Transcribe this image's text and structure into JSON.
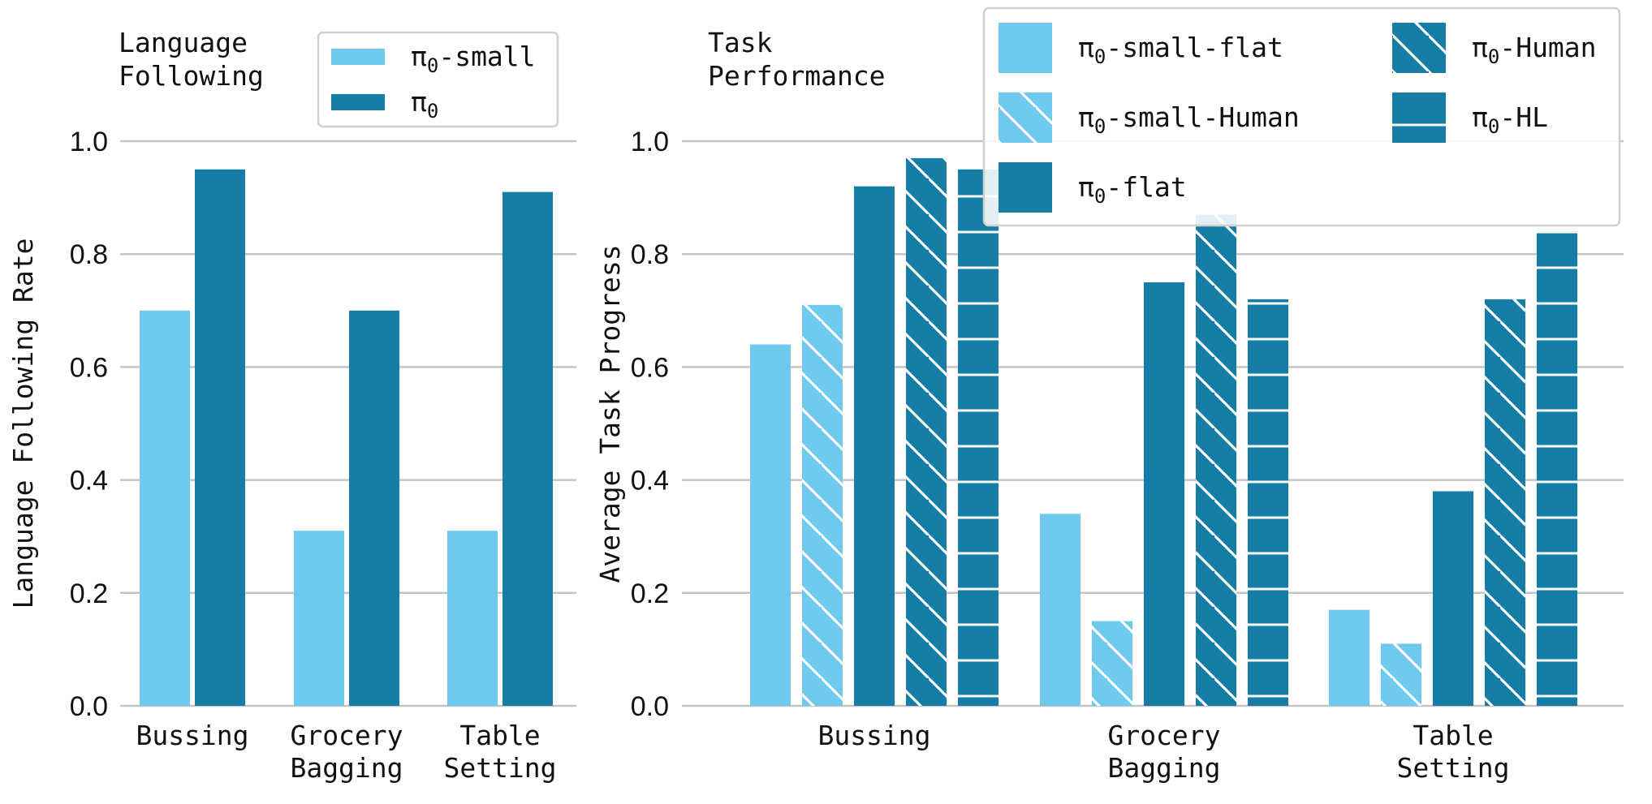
{
  "colors": {
    "light": "#6ec9ec",
    "dark": "#167ea6",
    "hatch": "#ffffff",
    "grid": "#c4c4c4"
  },
  "chart_data": [
    {
      "type": "bar",
      "title": "Language\nFollowing",
      "ylabel": "Language Following Rate",
      "ylim": [
        0,
        1.0
      ],
      "yticks": [
        "0.0",
        "0.2",
        "0.4",
        "0.6",
        "0.8",
        "1.0"
      ],
      "categories": [
        "Bussing",
        "Grocery\nBagging",
        "Table\nSetting"
      ],
      "legend": {
        "placement": "top-right"
      },
      "series": [
        {
          "name": "π0-small",
          "color": "light",
          "hatch": "none",
          "values": [
            0.7,
            0.31,
            0.31
          ]
        },
        {
          "name": "π0",
          "color": "dark",
          "hatch": "none",
          "values": [
            0.95,
            0.7,
            0.91
          ]
        }
      ]
    },
    {
      "type": "bar",
      "title": "Task\nPerformance",
      "ylabel": "Average Task Progress",
      "ylim": [
        0,
        1.0
      ],
      "yticks": [
        "0.0",
        "0.2",
        "0.4",
        "0.6",
        "0.8",
        "1.0"
      ],
      "categories": [
        "Bussing",
        "Grocery\nBagging",
        "Table\nSetting"
      ],
      "legend": {
        "placement": "top-right"
      },
      "series": [
        {
          "name": "π0-small-flat",
          "color": "light",
          "hatch": "none",
          "values": [
            0.64,
            0.34,
            0.17
          ]
        },
        {
          "name": "π0-small-Human",
          "color": "light",
          "hatch": "diagonal",
          "values": [
            0.71,
            0.15,
            0.11
          ]
        },
        {
          "name": "π0-flat",
          "color": "dark",
          "hatch": "none",
          "values": [
            0.92,
            0.75,
            0.38
          ]
        },
        {
          "name": "π0-Human",
          "color": "dark",
          "hatch": "diagonal",
          "values": [
            0.97,
            0.87,
            0.72
          ]
        },
        {
          "name": "π0-HL",
          "color": "dark",
          "hatch": "horizontal",
          "values": [
            0.95,
            0.72,
            0.84
          ]
        }
      ]
    }
  ]
}
